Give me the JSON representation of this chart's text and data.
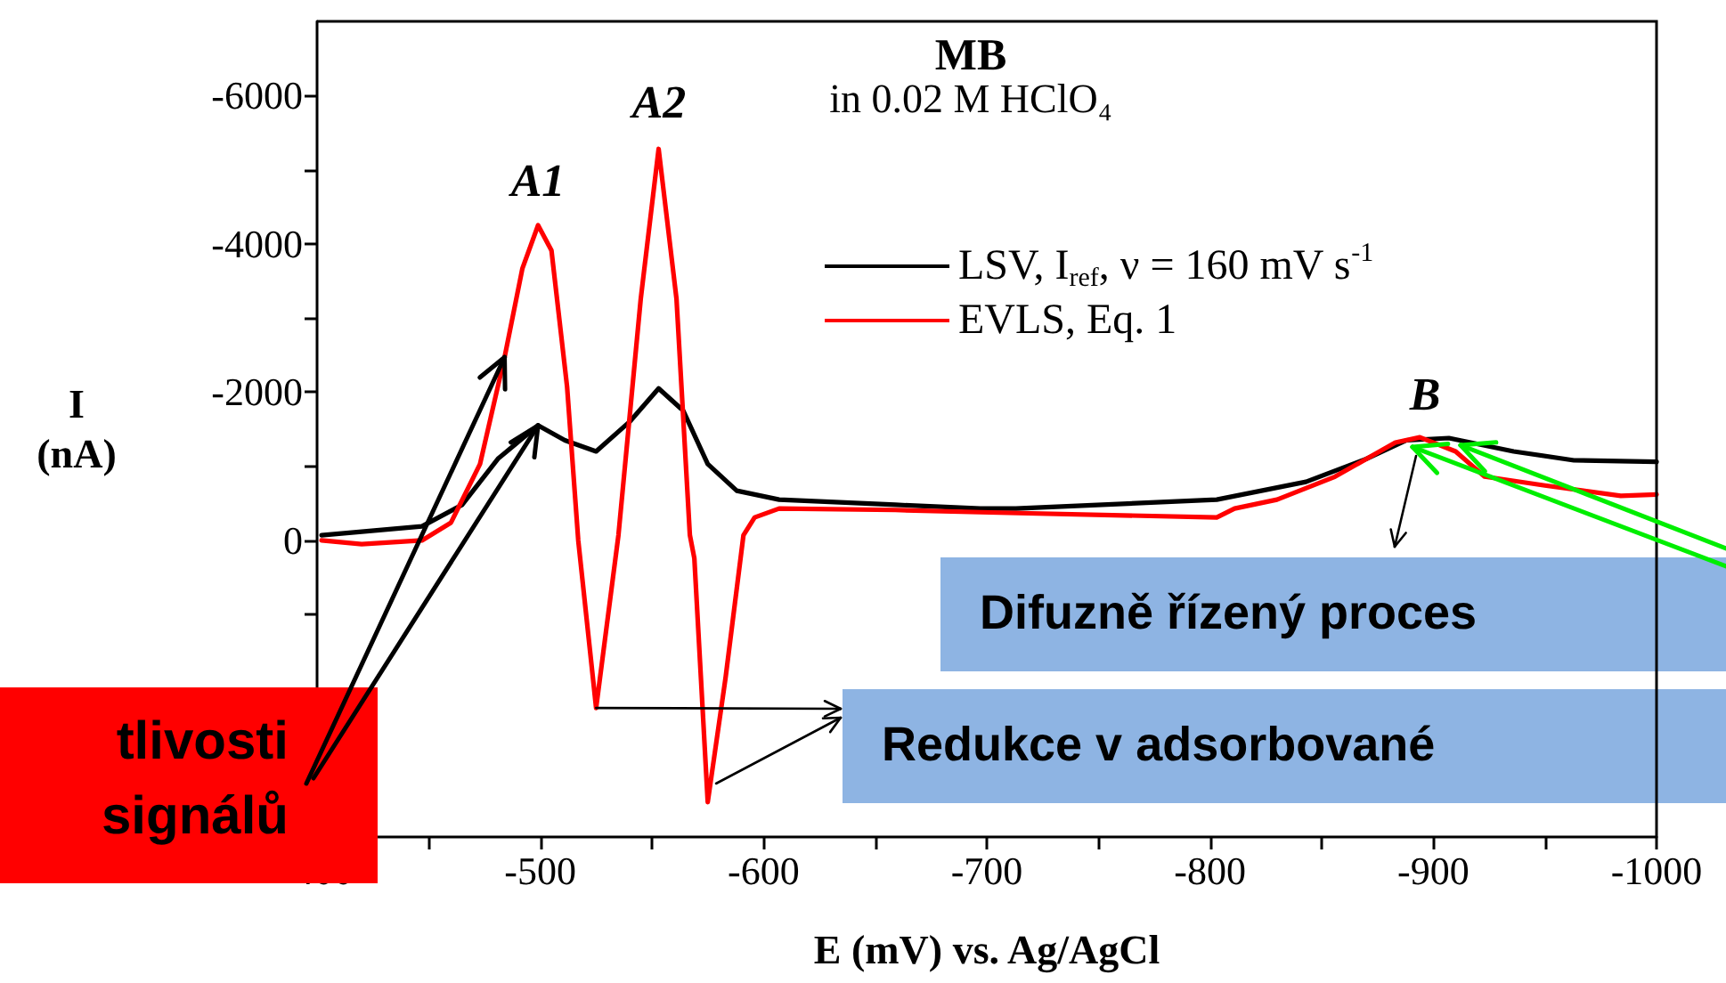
{
  "chart_data": {
    "type": "line",
    "title": "MB",
    "subtitle": "in 0.02 M HClO₄",
    "xlabel": "E (mV) vs. Ag/AgCl",
    "ylabel": "I (nA)",
    "xlim": [
      -400,
      -1000
    ],
    "xticks": [
      -400,
      {
        "value": -450,
        "label": null
      },
      -500,
      {
        "value": -550,
        "label": null
      },
      -600,
      {
        "value": -650,
        "label": null
      },
      -700,
      {
        "value": -750,
        "label": null
      },
      -800,
      {
        "value": -850,
        "label": null
      },
      -900,
      {
        "value": -950,
        "label": null
      },
      -1000
    ],
    "ylim": [
      4000,
      -7000
    ],
    "yticks": [
      {
        "value": 3000,
        "label": null
      },
      {
        "value": 2000,
        "label": null
      },
      {
        "value": 1000,
        "label": null
      },
      0,
      {
        "value": -1000,
        "label": null
      },
      -2000,
      {
        "value": -3000,
        "label": null
      },
      -4000,
      {
        "value": -5000,
        "label": null
      },
      -6000
    ],
    "grid": false,
    "legend": "top right",
    "marker": "none",
    "line_style": "solid",
    "series": [
      {
        "name": "LSV, I$_{ref}$, ν = 160 mV s$^{-1}$",
        "color": "#000000",
        "x": [
          -402,
          -447,
          -465,
          -481,
          -499,
          -511,
          -525,
          -540,
          -553,
          -564,
          -575,
          -588,
          -607,
          -659,
          -697,
          -713,
          -803,
          -843,
          -870,
          -888,
          -907,
          -936,
          -963,
          -1000
        ],
        "values": [
          -70,
          -190,
          -480,
          -1100,
          -1550,
          -1350,
          -1200,
          -1600,
          -2050,
          -1750,
          -1030,
          -670,
          -550,
          -480,
          -430,
          -430,
          -550,
          -790,
          -1100,
          -1350,
          -1380,
          -1200,
          -1080,
          -1060
        ]
      },
      {
        "name": "EVLS, Eq. 1",
        "color": "#ff0000",
        "x": [
          -402,
          -420,
          -447,
          -460,
          -473,
          -484,
          -492,
          -499,
          -505,
          -512,
          -517,
          -525,
          -535,
          -545,
          -553,
          -561,
          -567,
          -569,
          -575,
          -583,
          -591,
          -596,
          -607,
          -659,
          -697,
          -803,
          -811,
          -830,
          -856,
          -883,
          -894,
          -910,
          -923,
          -950,
          -984,
          -1000
        ],
        "values": [
          0,
          50,
          0,
          -240,
          -1030,
          -2470,
          -3670,
          -4250,
          -3910,
          -2070,
          0,
          2260,
          -70,
          -3260,
          -5280,
          -3260,
          -70,
          240,
          3530,
          1850,
          -70,
          -310,
          -430,
          -410,
          -380,
          -310,
          -430,
          -550,
          -860,
          -1320,
          -1390,
          -1200,
          -860,
          -740,
          -600,
          -620
        ]
      }
    ],
    "annotations": [
      "A1",
      "A2",
      "B",
      "Difuzně řízený proces",
      {
        "text": "Redukce v adsorbované",
        "x": -525,
        "y": 2260
      },
      {
        "text": "tlivosti",
        "x": -499,
        "y": -1550
      },
      {
        "text": "signálů",
        "x": -484,
        "y": -2470
      }
    ]
  }
}
